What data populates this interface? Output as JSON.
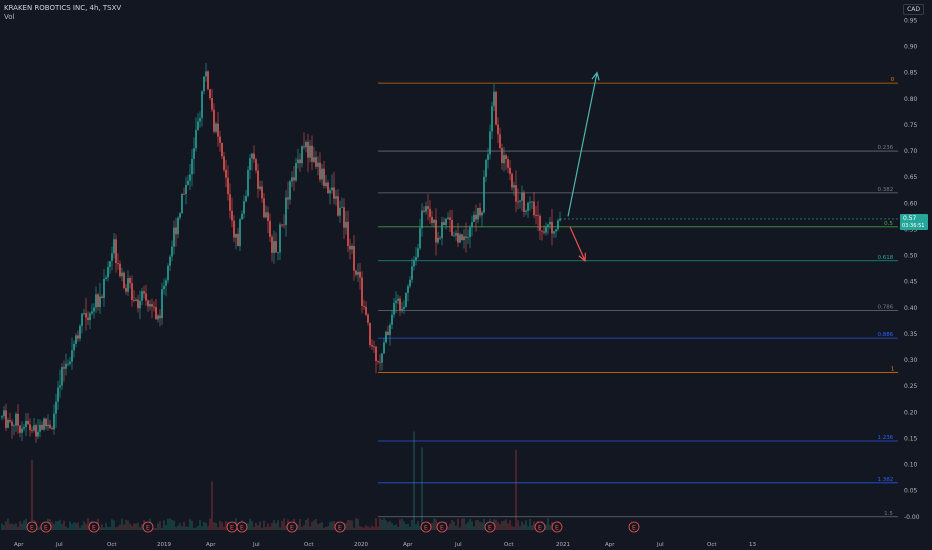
{
  "header": {
    "symbol": "KRAKEN ROBOTICS INC, 4h, TSXV",
    "volume_label": "Vol",
    "currency": "CAD"
  },
  "colors": {
    "background": "#131722",
    "up": "#26a69a",
    "down": "#ef5350",
    "axis_text": "#b2b5be",
    "fib_0": "#f57c00",
    "fib_1": "#f57c00",
    "fib_default": "#787b86",
    "fib_0618": "#26a69a",
    "fib_05": "#4caf50",
    "fib_0886": "#2962ff",
    "fib_1618": "#2962ff",
    "arrow_up": "#4db6ac",
    "arrow_down": "#ef5350",
    "price_tag": "#26a69a"
  },
  "chart_data": {
    "type": "candlestick",
    "y_axis": {
      "ticks": [
        "0.95",
        "0.90",
        "0.85",
        "0.80",
        "0.75",
        "0.70",
        "0.65",
        "0.60",
        "0.55",
        "0.50",
        "0.45",
        "0.40",
        "0.35",
        "0.30",
        "0.25",
        "0.20",
        "0.15",
        "0.10",
        "0.05",
        "-0.00"
      ],
      "range": [
        -0.01,
        0.97
      ]
    },
    "x_axis": {
      "ticks": [
        "Apr",
        "Jul",
        "Oct",
        "2019",
        "Apr",
        "Jul",
        "Oct",
        "2020",
        "Apr",
        "Jul",
        "Oct",
        "2021",
        "Apr",
        "Jul",
        "Oct",
        "13"
      ]
    },
    "price_path": [
      [
        0.0,
        0.19
      ],
      [
        0.05,
        0.17
      ],
      [
        0.09,
        0.18
      ],
      [
        0.11,
        0.28
      ],
      [
        0.14,
        0.37
      ],
      [
        0.16,
        0.4
      ],
      [
        0.18,
        0.43
      ],
      [
        0.2,
        0.52
      ],
      [
        0.22,
        0.45
      ],
      [
        0.24,
        0.42
      ],
      [
        0.26,
        0.41
      ],
      [
        0.28,
        0.38
      ],
      [
        0.3,
        0.5
      ],
      [
        0.32,
        0.6
      ],
      [
        0.345,
        0.7
      ],
      [
        0.365,
        0.86
      ],
      [
        0.375,
        0.78
      ],
      [
        0.4,
        0.65
      ],
      [
        0.42,
        0.52
      ],
      [
        0.45,
        0.7
      ],
      [
        0.47,
        0.58
      ],
      [
        0.49,
        0.5
      ],
      [
        0.51,
        0.6
      ],
      [
        0.54,
        0.72
      ],
      [
        0.57,
        0.66
      ],
      [
        0.6,
        0.6
      ],
      [
        0.615,
        0.56
      ],
      [
        0.64,
        0.45
      ],
      [
        0.66,
        0.33
      ],
      [
        0.68,
        0.3
      ],
      [
        0.7,
        0.4
      ],
      [
        0.72,
        0.42
      ],
      [
        0.74,
        0.5
      ],
      [
        0.76,
        0.61
      ],
      [
        0.78,
        0.53
      ],
      [
        0.8,
        0.57
      ],
      [
        0.82,
        0.53
      ],
      [
        0.84,
        0.56
      ],
      [
        0.86,
        0.59
      ],
      [
        0.87,
        0.7
      ],
      [
        0.88,
        0.82
      ],
      [
        0.89,
        0.72
      ],
      [
        0.91,
        0.64
      ],
      [
        0.93,
        0.61
      ],
      [
        0.955,
        0.58
      ],
      [
        0.975,
        0.55
      ],
      [
        1.0,
        0.57
      ]
    ],
    "fib_levels": [
      {
        "label": "0",
        "price": 0.83
      },
      {
        "label": "0.236",
        "price": 0.7
      },
      {
        "label": "0.382",
        "price": 0.62
      },
      {
        "label": "0.5",
        "price": 0.555
      },
      {
        "label": "0.618",
        "price": 0.49
      },
      {
        "label": "0.786",
        "price": 0.395
      },
      {
        "label": "0.886",
        "price": 0.342
      },
      {
        "label": "1",
        "price": 0.276
      },
      {
        "label": "1.236",
        "price": 0.145
      },
      {
        "label": "1.382",
        "price": 0.065
      },
      {
        "label": "1.5",
        "price": 0.0
      }
    ],
    "current_price": {
      "value": "0.57",
      "countdown": "03:36:51"
    },
    "arrow_up": {
      "from_price": 0.575,
      "to_price": 0.85
    },
    "arrow_down": {
      "from_price": 0.555,
      "to_price": 0.49
    },
    "earnings_markers": [
      "E",
      "E",
      "E",
      "E",
      "E",
      "E",
      "E",
      "E",
      "E",
      "E",
      "E",
      "E",
      "E",
      "E",
      "E"
    ],
    "grid": false,
    "legend": "none"
  }
}
